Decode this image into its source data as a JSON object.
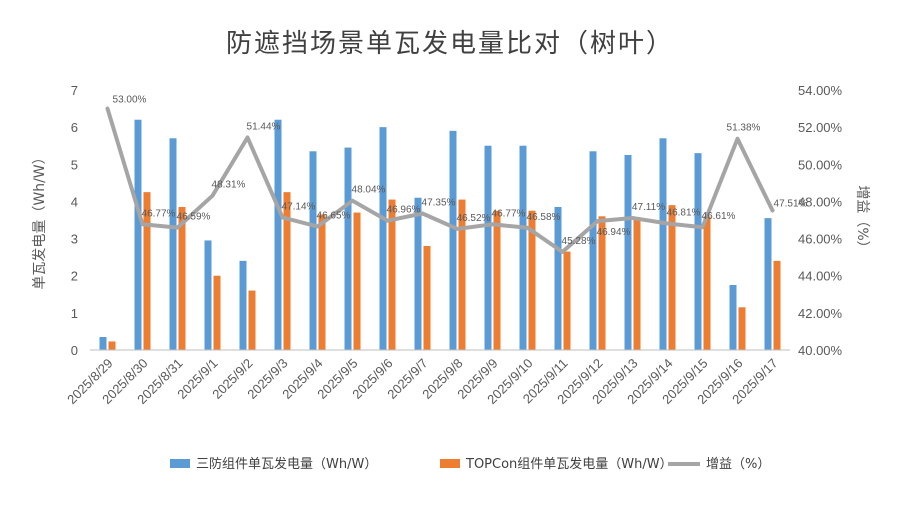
{
  "chart_data": {
    "type": "bar",
    "title": "防遮挡场景单瓦发电量比对（树叶）",
    "ylabel": "单瓦发电量（Wh/W）",
    "y2label": "增益（%）",
    "ylim": [
      0,
      7
    ],
    "y2lim": [
      40,
      54
    ],
    "yticks": [
      "0",
      "1",
      "2",
      "3",
      "4",
      "5",
      "6",
      "7"
    ],
    "y2ticks": [
      "40.00%",
      "42.00%",
      "44.00%",
      "46.00%",
      "48.00%",
      "50.00%",
      "52.00%",
      "54.00%"
    ],
    "categories": [
      "2025/8/29",
      "2025/8/30",
      "2025/8/31",
      "2025/9/1",
      "2025/9/2",
      "2025/9/3",
      "2025/9/4",
      "2025/9/5",
      "2025/9/6",
      "2025/9/7",
      "2025/9/8",
      "2025/9/9",
      "2025/9/10",
      "2025/9/11",
      "2025/9/12",
      "2025/9/13",
      "2025/9/14",
      "2025/9/15",
      "2025/9/16",
      "2025/9/17"
    ],
    "series": [
      {
        "name": "三防组件单瓦发电量（Wh/W）",
        "color": "#5B9BD5",
        "values": [
          0.35,
          6.2,
          5.7,
          2.95,
          2.4,
          6.2,
          5.35,
          5.45,
          6.0,
          4.1,
          5.9,
          5.5,
          5.5,
          3.85,
          5.35,
          5.25,
          5.7,
          5.3,
          1.75,
          3.55
        ]
      },
      {
        "name": "TOPCon组件单瓦发电量（Wh/W）",
        "color": "#ED7D31",
        "values": [
          0.23,
          4.25,
          3.85,
          2.0,
          1.6,
          4.25,
          3.65,
          3.7,
          4.05,
          2.8,
          4.05,
          3.75,
          3.75,
          2.65,
          3.6,
          3.55,
          3.9,
          3.6,
          1.15,
          2.4
        ]
      },
      {
        "name": "增益（%）",
        "color": "#A5A5A5",
        "type": "line",
        "values": [
          53.0,
          46.77,
          46.59,
          48.31,
          51.44,
          47.14,
          46.65,
          48.04,
          46.96,
          47.35,
          46.52,
          46.77,
          46.58,
          45.28,
          46.94,
          47.11,
          46.81,
          46.61,
          51.38,
          47.51
        ],
        "labels": [
          "53.00%",
          "46.77%",
          "46.59%",
          "48.31%",
          "51.44%",
          "47.14%",
          "46.65%",
          "48.04%",
          "46.96%",
          "47.35%",
          "46.52%",
          "46.77%",
          "46.58%",
          "45.28%",
          "46.94%",
          "47.11%",
          "46.81%",
          "46.61%",
          "51.38%",
          "47.51%"
        ]
      }
    ],
    "legend": "bottom",
    "grid": false
  }
}
